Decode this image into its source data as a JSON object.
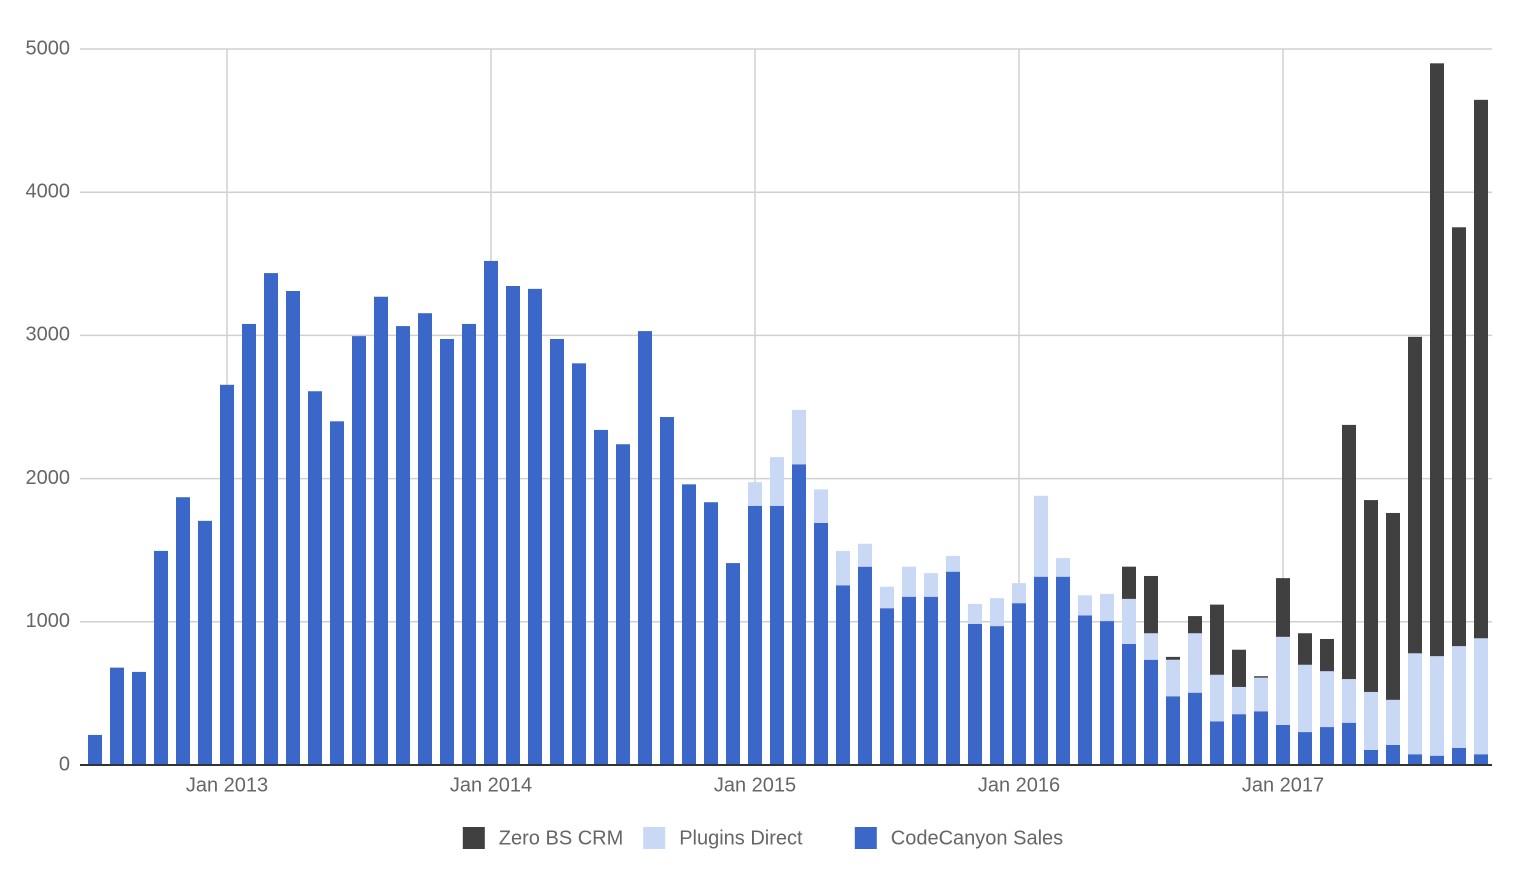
{
  "chart_data": {
    "type": "stacked_bar",
    "categories": [
      null,
      null,
      null,
      null,
      null,
      null,
      "Jan 2013",
      null,
      null,
      null,
      null,
      null,
      null,
      null,
      null,
      null,
      null,
      null,
      "Jan 2014",
      null,
      null,
      null,
      null,
      null,
      null,
      null,
      null,
      null,
      null,
      null,
      "Jan 2015",
      null,
      null,
      null,
      null,
      null,
      null,
      null,
      null,
      null,
      null,
      null,
      "Jan 2016",
      null,
      null,
      null,
      null,
      null,
      null,
      null,
      null,
      null,
      null,
      null,
      "Jan 2017",
      null,
      null,
      null,
      null,
      null,
      null,
      null,
      null,
      null
    ],
    "series": [
      {
        "name": "CodeCanyon Sales",
        "color": "#3b67c8",
        "values": [
          210,
          680,
          650,
          1495,
          1870,
          1705,
          2655,
          3080,
          3435,
          3310,
          2610,
          2400,
          2995,
          3270,
          3065,
          3155,
          2975,
          3080,
          3520,
          3345,
          3325,
          2975,
          2805,
          2340,
          2240,
          3030,
          2430,
          1960,
          1835,
          1410,
          1810,
          1810,
          2100,
          1690,
          1255,
          1385,
          1095,
          1175,
          1175,
          1350,
          985,
          970,
          1130,
          1315,
          1315,
          1045,
          1005,
          845,
          735,
          480,
          505,
          305,
          355,
          375,
          280,
          230,
          265,
          295,
          105,
          140,
          75,
          65,
          120,
          75
        ]
      },
      {
        "name": "Plugins Direct",
        "color": "#c9d9f5",
        "values": [
          0,
          0,
          0,
          0,
          0,
          0,
          0,
          0,
          0,
          0,
          0,
          0,
          0,
          0,
          0,
          0,
          0,
          0,
          0,
          0,
          0,
          0,
          0,
          0,
          0,
          0,
          0,
          0,
          0,
          0,
          165,
          340,
          380,
          235,
          240,
          160,
          150,
          210,
          165,
          110,
          140,
          195,
          140,
          565,
          130,
          140,
          190,
          315,
          185,
          255,
          415,
          325,
          190,
          235,
          615,
          470,
          390,
          305,
          405,
          315,
          705,
          695,
          710,
          810
        ]
      },
      {
        "name": "Zero BS CRM",
        "color": "#404040",
        "values": [
          0,
          0,
          0,
          0,
          0,
          0,
          0,
          0,
          0,
          0,
          0,
          0,
          0,
          0,
          0,
          0,
          0,
          0,
          0,
          0,
          0,
          0,
          0,
          0,
          0,
          0,
          0,
          0,
          0,
          0,
          0,
          0,
          0,
          0,
          0,
          0,
          0,
          0,
          0,
          0,
          0,
          0,
          0,
          0,
          0,
          0,
          0,
          225,
          400,
          20,
          120,
          490,
          260,
          10,
          410,
          220,
          225,
          1775,
          1340,
          1305,
          2210,
          4140,
          2925,
          3760
        ]
      }
    ],
    "ylim": [
      0,
      5000
    ],
    "yticks": [
      0,
      1000,
      2000,
      3000,
      4000,
      5000
    ],
    "grid": true,
    "legend": "bottom"
  }
}
